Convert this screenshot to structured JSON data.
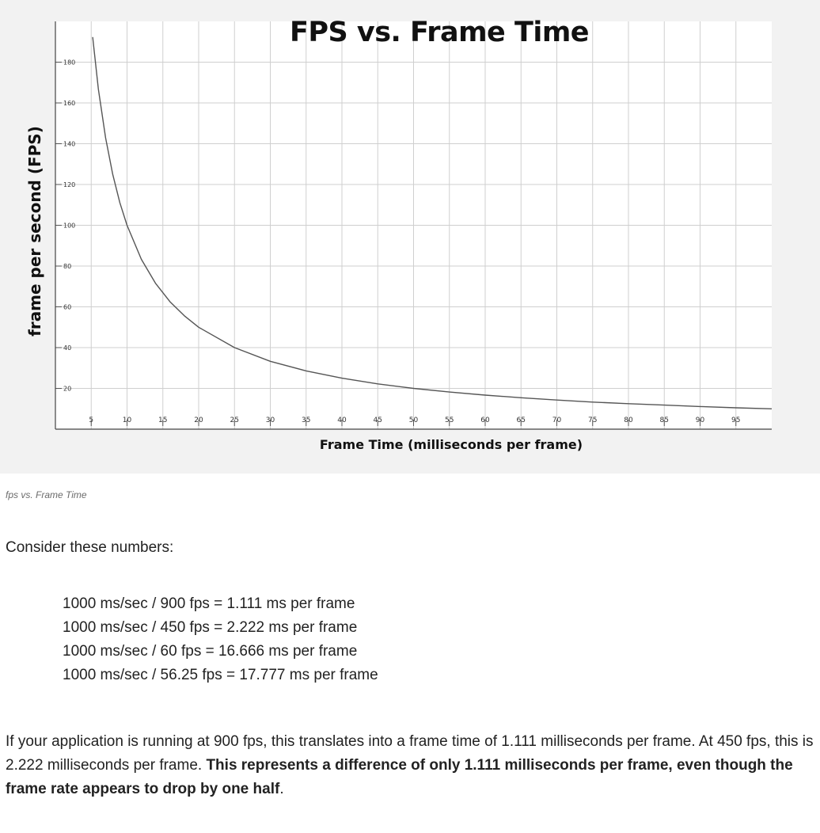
{
  "chart_data": {
    "type": "line",
    "title": "FPS vs. Frame Time",
    "xlabel": "Frame Time (milliseconds per frame)",
    "ylabel": "frame per second (FPS)",
    "xlim": [
      0,
      100
    ],
    "ylim": [
      0,
      200
    ],
    "x_ticks": [
      5,
      10,
      15,
      20,
      25,
      30,
      35,
      40,
      45,
      50,
      55,
      60,
      65,
      70,
      75,
      80,
      85,
      90,
      95
    ],
    "y_ticks": [
      20,
      40,
      60,
      80,
      100,
      120,
      140,
      160,
      180
    ],
    "grid": true,
    "series": [
      {
        "x": [
          5.2,
          6,
          7,
          8,
          9,
          10,
          12,
          14,
          16,
          18,
          20,
          25,
          30,
          35,
          40,
          45,
          50,
          55,
          60,
          65,
          70,
          75,
          80,
          85,
          90,
          95,
          100
        ],
        "values": [
          192.3,
          166.7,
          142.9,
          125,
          111.1,
          100,
          83.3,
          71.4,
          62.5,
          55.6,
          50,
          40,
          33.3,
          28.6,
          25,
          22.2,
          20,
          18.2,
          16.7,
          15.4,
          14.3,
          13.3,
          12.5,
          11.8,
          11.1,
          10.5,
          10
        ]
      }
    ]
  },
  "figure": {
    "caption": "fps vs. Frame Time"
  },
  "article": {
    "intro": "Consider these numbers:",
    "calculations": [
      "1000 ms/sec / 900 fps = 1.111 ms per frame",
      "1000 ms/sec / 450 fps = 2.222 ms per frame",
      "1000 ms/sec / 60 fps = 16.666 ms per frame",
      "1000 ms/sec / 56.25 fps = 17.777 ms per frame"
    ],
    "paragraph_text": "If your application is running at 900 fps, this translates into a frame time of 1.111 milliseconds per frame. At 450 fps, this is 2.222 milliseconds per frame. ",
    "paragraph_bold": "This represents a difference of only 1.111 milliseconds per frame, even though the frame rate appears to drop by one half",
    "paragraph_end": "."
  }
}
